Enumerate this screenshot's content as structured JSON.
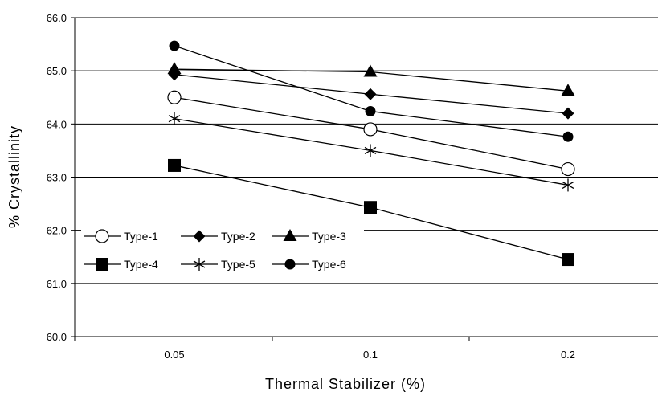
{
  "chart_data": {
    "type": "line",
    "title": "",
    "xlabel": "Thermal Stabilizer (%)",
    "ylabel": "% Crystallinity",
    "categories": [
      "0.05",
      "0.1",
      "0.2"
    ],
    "ylim": [
      60.0,
      66.0
    ],
    "yticks": [
      "60.0",
      "61.0",
      "62.0",
      "63.0",
      "64.0",
      "65.0",
      "66.0"
    ],
    "grid": "horizontal",
    "legend_position": "inside-lower-left",
    "series": [
      {
        "name": "Type-1",
        "marker": "circle-open",
        "values": [
          64.5,
          63.9,
          63.15
        ]
      },
      {
        "name": "Type-2",
        "marker": "diamond",
        "values": [
          64.93,
          64.56,
          64.2
        ]
      },
      {
        "name": "Type-3",
        "marker": "triangle",
        "values": [
          65.03,
          64.98,
          64.62
        ]
      },
      {
        "name": "Type-4",
        "marker": "square",
        "values": [
          63.22,
          62.43,
          61.45
        ]
      },
      {
        "name": "Type-5",
        "marker": "asterisk",
        "values": [
          64.1,
          63.5,
          62.85
        ]
      },
      {
        "name": "Type-6",
        "marker": "circle",
        "values": [
          65.47,
          64.24,
          63.76
        ]
      }
    ],
    "colors": {
      "line": "#000000",
      "grid": "#000000",
      "background": "#ffffff"
    }
  }
}
